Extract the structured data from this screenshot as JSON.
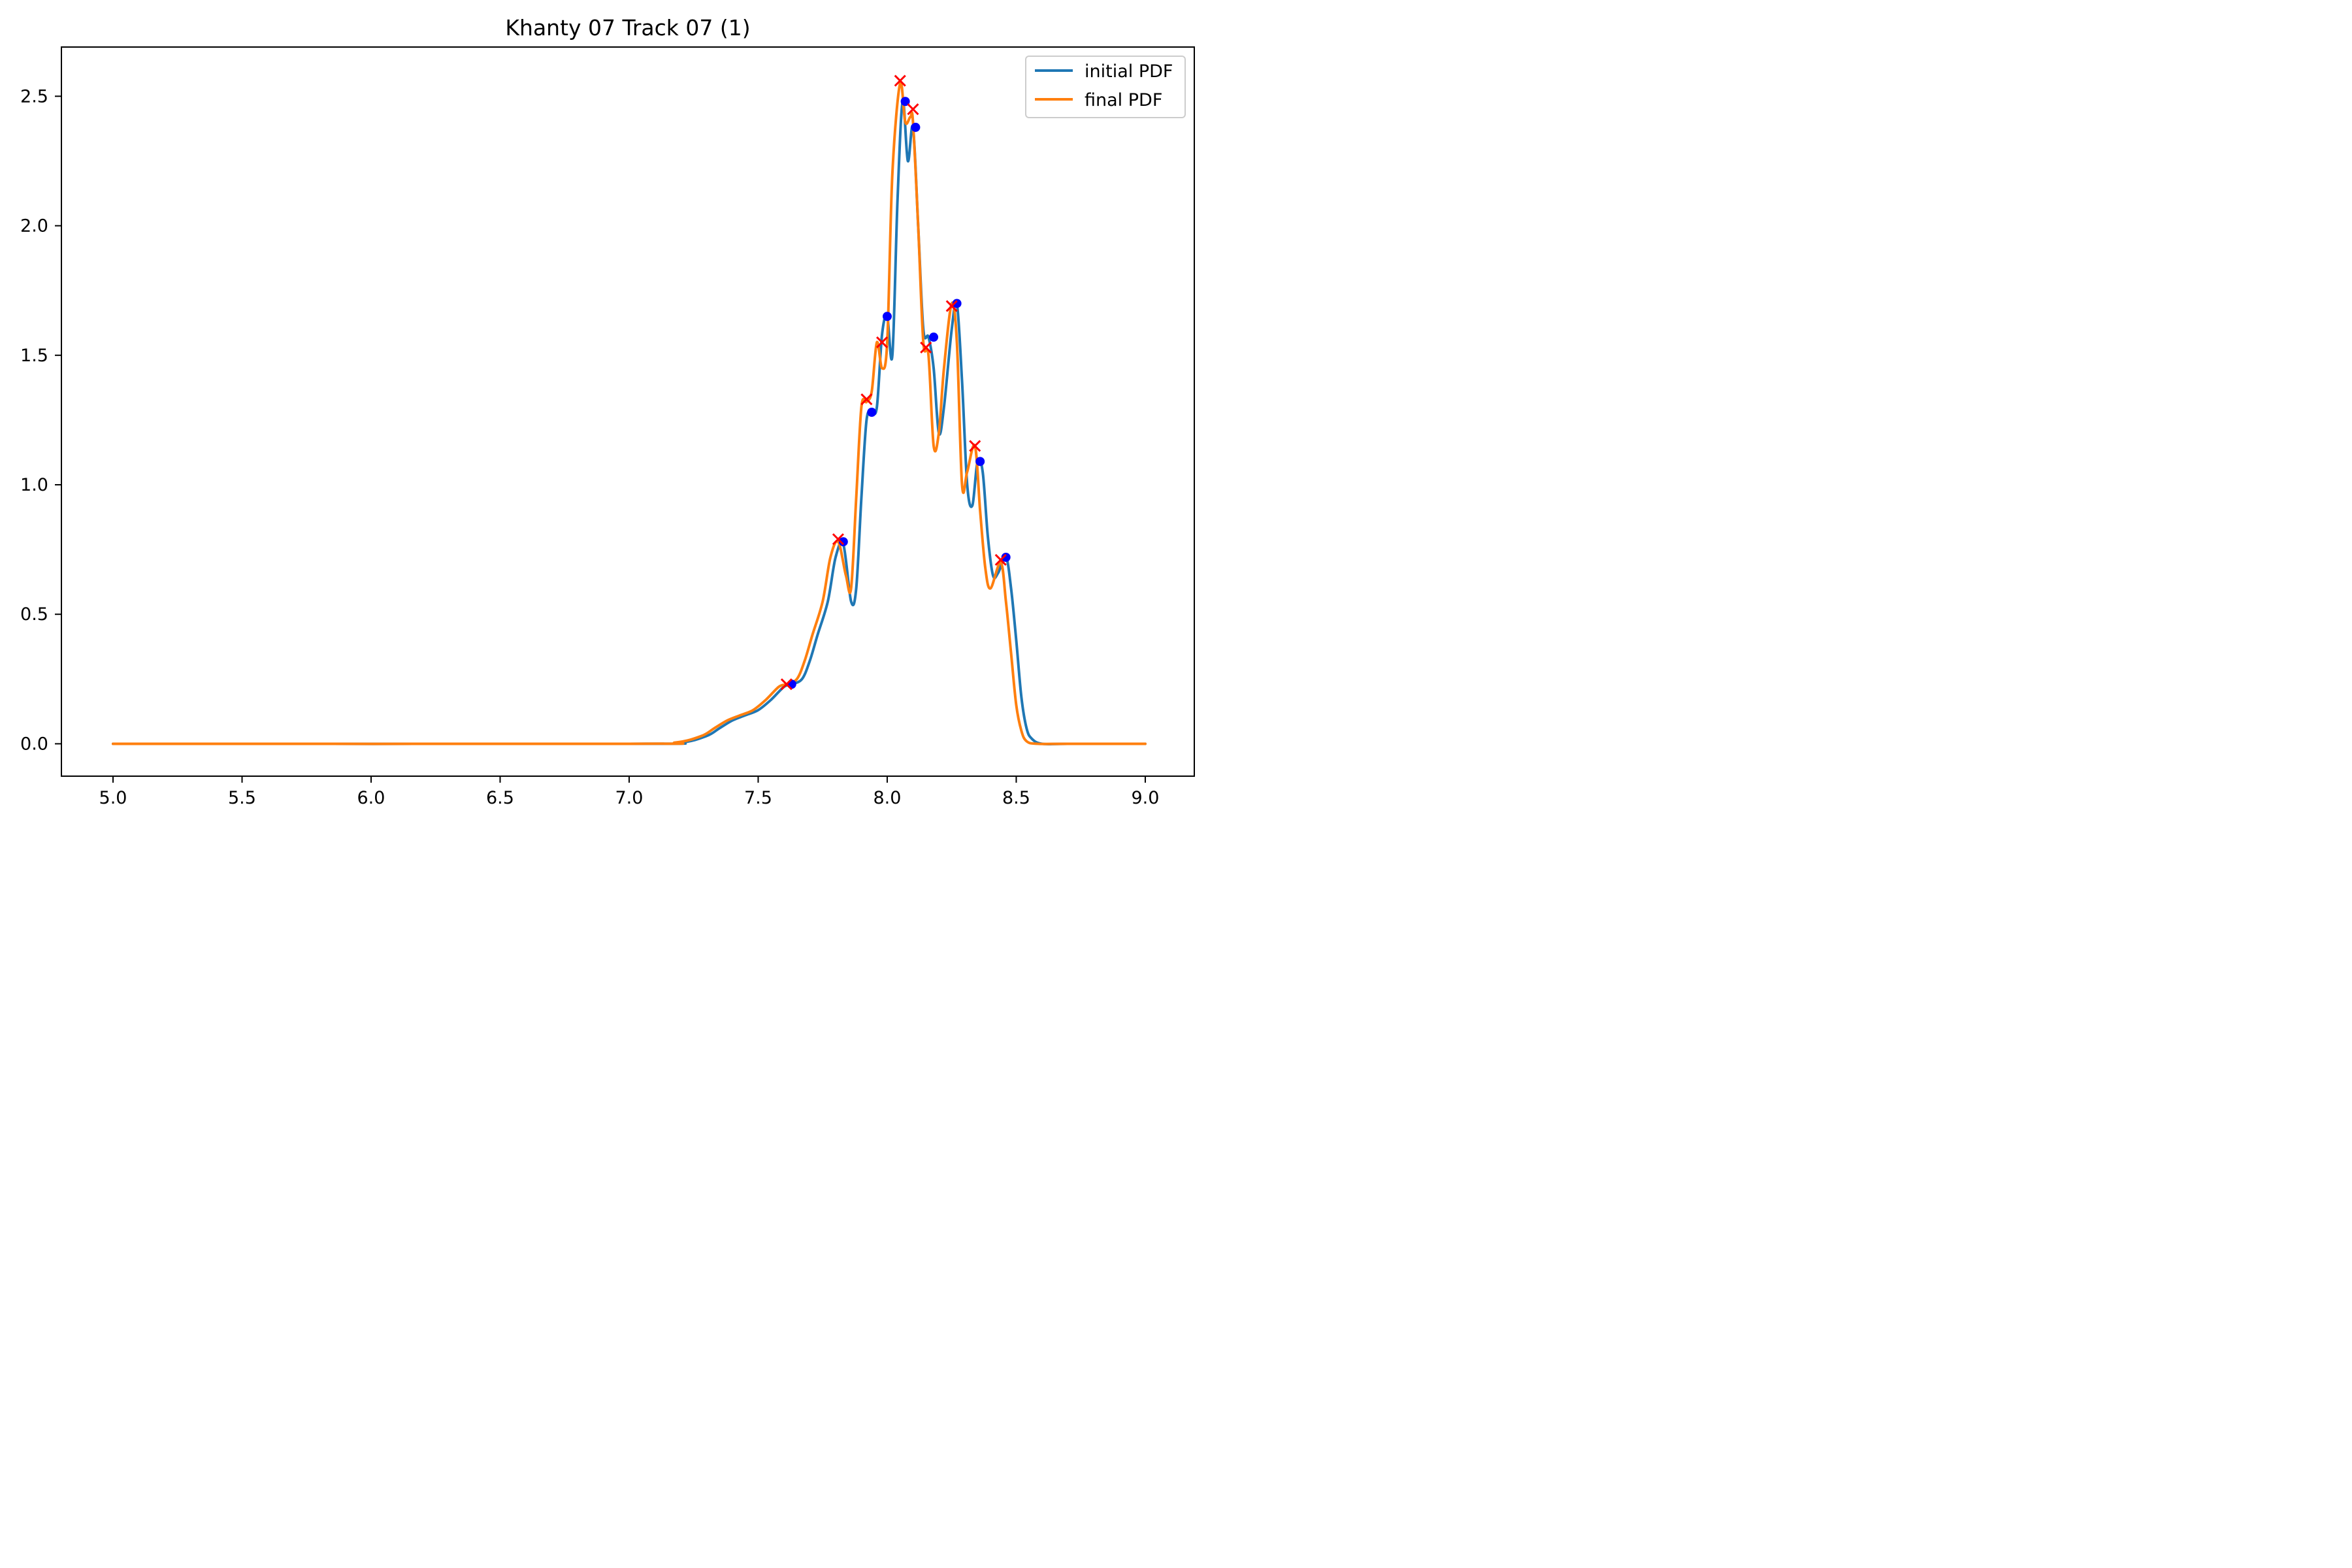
{
  "chart_data": {
    "type": "line",
    "title": "Khanty 07 Track 07 (1)",
    "xlabel": "",
    "ylabel": "",
    "xlim": [
      4.8,
      9.19
    ],
    "ylim": [
      -0.125,
      2.69
    ],
    "x_ticks": [
      5.0,
      5.5,
      6.0,
      6.5,
      7.0,
      7.5,
      8.0,
      8.5,
      9.0
    ],
    "x_tick_labels": [
      "5.0",
      "5.5",
      "6.0",
      "6.5",
      "7.0",
      "7.5",
      "8.0",
      "8.5",
      "9.0"
    ],
    "y_ticks": [
      0.0,
      0.5,
      1.0,
      1.5,
      2.0,
      2.5
    ],
    "y_tick_labels": [
      "0.0",
      "0.5",
      "1.0",
      "1.5",
      "2.0",
      "2.5"
    ],
    "grid": false,
    "legend_position": "upper right",
    "series": [
      {
        "name": "initial PDF",
        "color": "#1f77b4",
        "x": [
          5.0,
          7.0,
          7.2,
          7.3,
          7.35,
          7.4,
          7.45,
          7.5,
          7.55,
          7.6,
          7.63,
          7.67,
          7.7,
          7.73,
          7.77,
          7.8,
          7.83,
          7.86,
          7.88,
          7.9,
          7.92,
          7.94,
          7.96,
          7.98,
          8.0,
          8.02,
          8.04,
          8.06,
          8.08,
          8.1,
          8.12,
          8.14,
          8.16,
          8.18,
          8.2,
          8.22,
          8.25,
          8.27,
          8.29,
          8.31,
          8.33,
          8.35,
          8.37,
          8.39,
          8.41,
          8.43,
          8.46,
          8.48,
          8.5,
          8.52,
          8.54,
          8.56,
          8.6,
          8.7,
          9.0
        ],
        "y": [
          0.0,
          0.0,
          0.005,
          0.03,
          0.06,
          0.09,
          0.11,
          0.13,
          0.17,
          0.22,
          0.23,
          0.25,
          0.32,
          0.42,
          0.55,
          0.72,
          0.77,
          0.55,
          0.6,
          0.95,
          1.25,
          1.28,
          1.3,
          1.58,
          1.65,
          1.5,
          2.1,
          2.48,
          2.25,
          2.38,
          2.0,
          1.6,
          1.57,
          1.45,
          1.2,
          1.3,
          1.6,
          1.7,
          1.4,
          1.0,
          0.92,
          1.09,
          1.05,
          0.8,
          0.65,
          0.66,
          0.72,
          0.6,
          0.4,
          0.18,
          0.06,
          0.02,
          0.0,
          0.0,
          0.0
        ]
      },
      {
        "name": "final PDF",
        "color": "#ff7f0e",
        "x": [
          5.0,
          7.0,
          7.18,
          7.28,
          7.33,
          7.38,
          7.43,
          7.48,
          7.53,
          7.58,
          7.61,
          7.65,
          7.68,
          7.71,
          7.75,
          7.78,
          7.81,
          7.84,
          7.86,
          7.88,
          7.9,
          7.92,
          7.94,
          7.96,
          7.98,
          8.0,
          8.02,
          8.05,
          8.07,
          8.09,
          8.1,
          8.12,
          8.14,
          8.16,
          8.18,
          8.2,
          8.22,
          8.25,
          8.27,
          8.29,
          8.31,
          8.34,
          8.36,
          8.38,
          8.4,
          8.44,
          8.46,
          8.48,
          8.5,
          8.52,
          8.54,
          8.58,
          8.7,
          9.0
        ],
        "y": [
          0.0,
          0.0,
          0.005,
          0.03,
          0.06,
          0.09,
          0.11,
          0.13,
          0.17,
          0.22,
          0.23,
          0.25,
          0.32,
          0.42,
          0.55,
          0.72,
          0.78,
          0.65,
          0.6,
          0.95,
          1.3,
          1.32,
          1.36,
          1.55,
          1.45,
          1.55,
          2.2,
          2.55,
          2.4,
          2.42,
          2.4,
          2.0,
          1.55,
          1.5,
          1.15,
          1.2,
          1.45,
          1.7,
          1.55,
          1.0,
          1.05,
          1.15,
          0.9,
          0.68,
          0.6,
          0.7,
          0.55,
          0.35,
          0.15,
          0.05,
          0.01,
          0.0,
          0.0,
          0.0
        ]
      }
    ],
    "markers": [
      {
        "series": "initial PDF",
        "shape": "dot",
        "color": "#0000ff",
        "x": [
          7.63,
          7.83,
          7.94,
          8.0,
          8.07,
          8.11,
          8.18,
          8.27,
          8.36,
          8.46
        ],
        "y": [
          0.23,
          0.78,
          1.28,
          1.65,
          2.48,
          2.38,
          1.57,
          1.7,
          1.09,
          0.72
        ]
      },
      {
        "series": "final PDF",
        "shape": "x",
        "color": "#ff0000",
        "x": [
          7.61,
          7.81,
          7.92,
          7.98,
          8.05,
          8.1,
          8.15,
          8.25,
          8.34,
          8.44
        ],
        "y": [
          0.23,
          0.79,
          1.33,
          1.55,
          2.56,
          2.45,
          1.53,
          1.69,
          1.15,
          0.71
        ]
      }
    ]
  }
}
